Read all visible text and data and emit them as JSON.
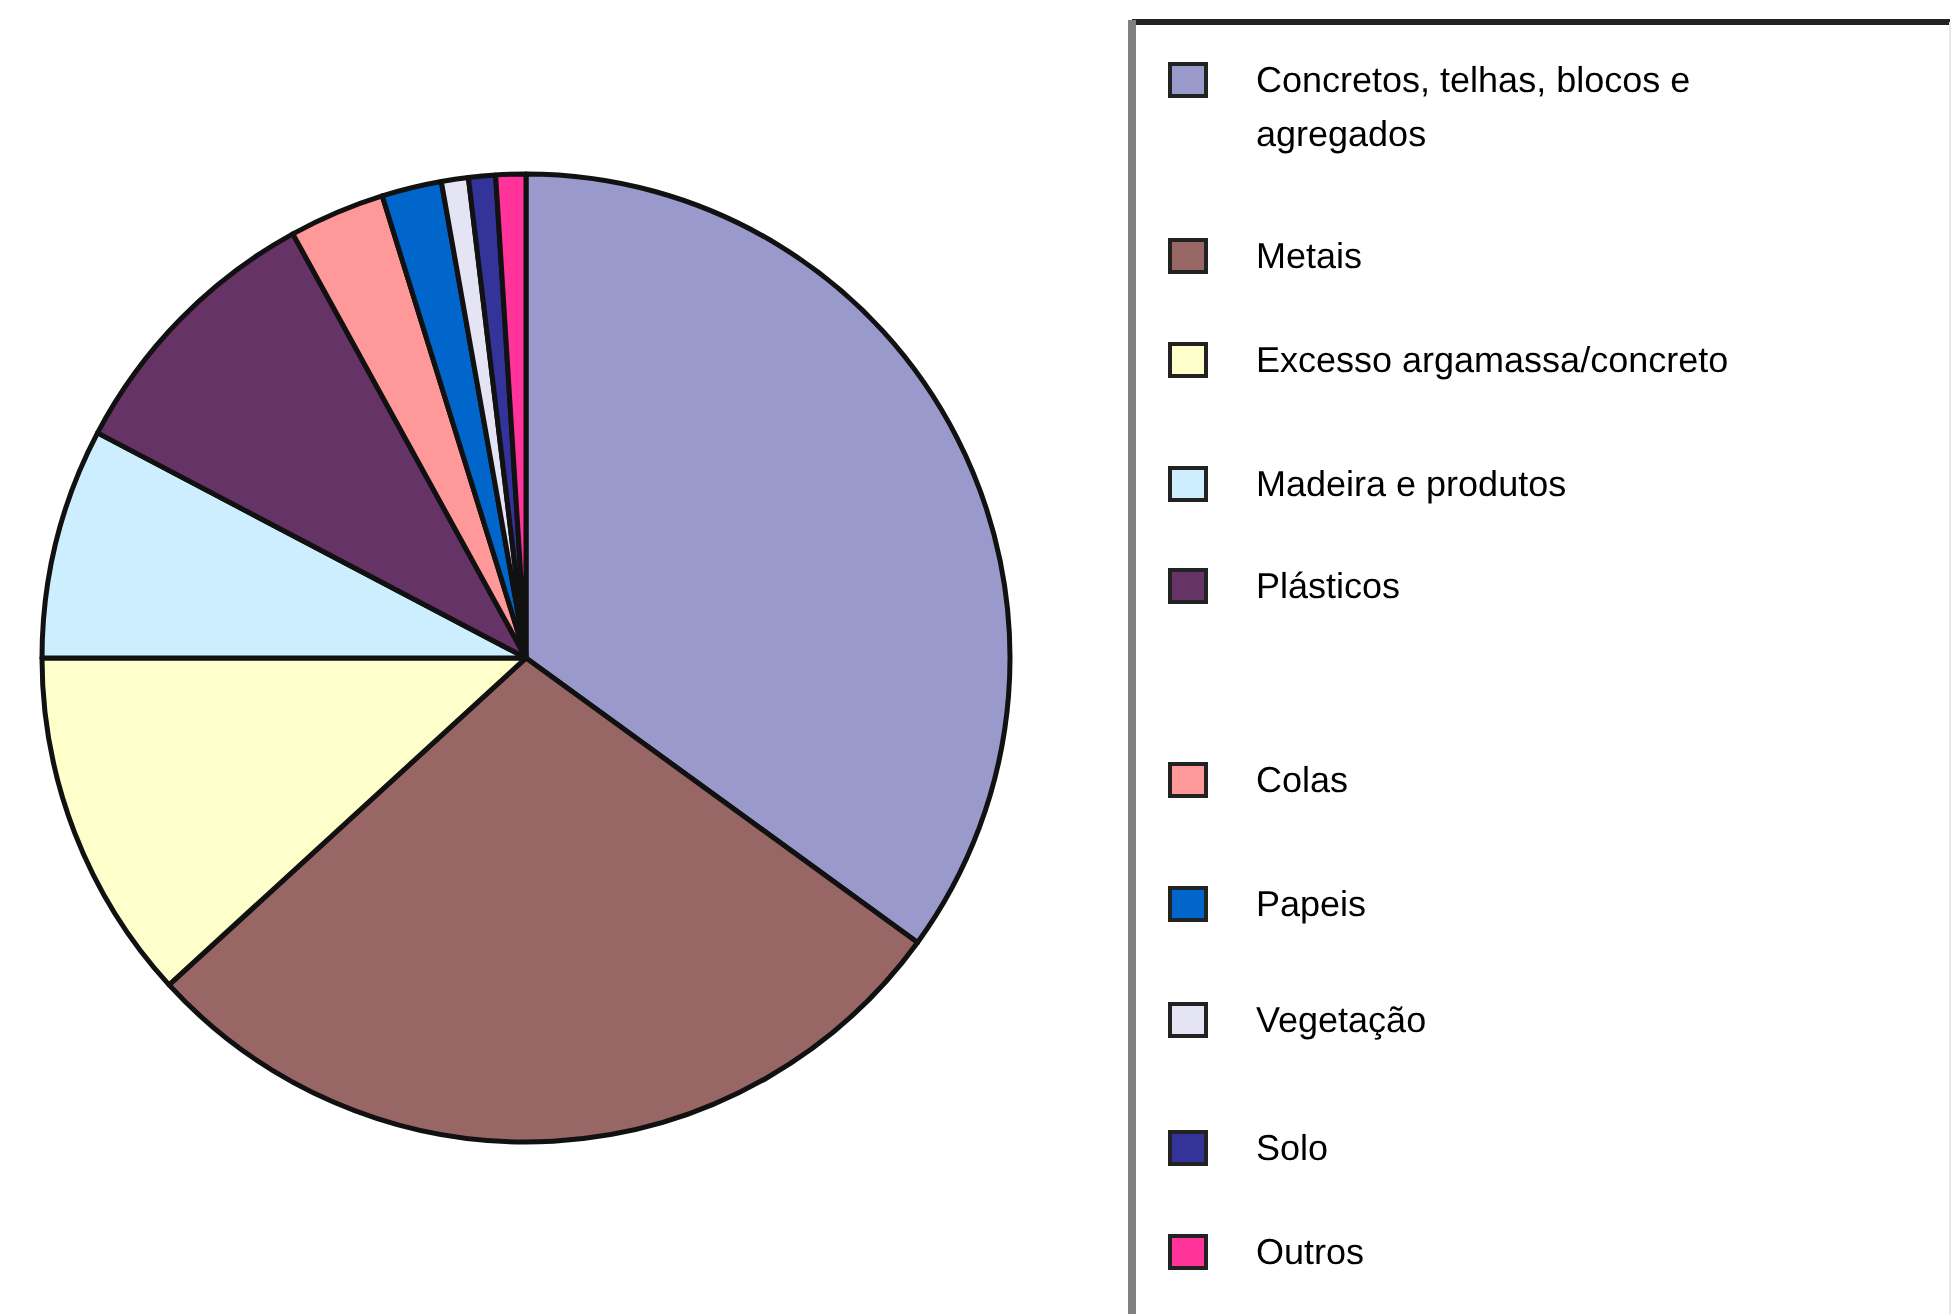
{
  "chart_data": {
    "type": "pie",
    "categories": [
      "Concretos, telhas, blocos e agregados",
      "Metais",
      "Excesso argamassa/concreto",
      "Madeira e produtos",
      "Plásticos",
      "Colas",
      "Papeis",
      "Vegetação",
      "Solo",
      "Outros"
    ],
    "values": [
      35.0,
      28.2,
      11.8,
      7.7,
      9.3,
      3.2,
      2.0,
      0.9,
      0.9,
      1.0
    ],
    "colors": [
      "#9999cc",
      "#996666",
      "#ffffcc",
      "#cceeff",
      "#663366",
      "#ff9999",
      "#0066cc",
      "#e4e4f4",
      "#333399",
      "#ff3399"
    ],
    "legend": "right"
  }
}
